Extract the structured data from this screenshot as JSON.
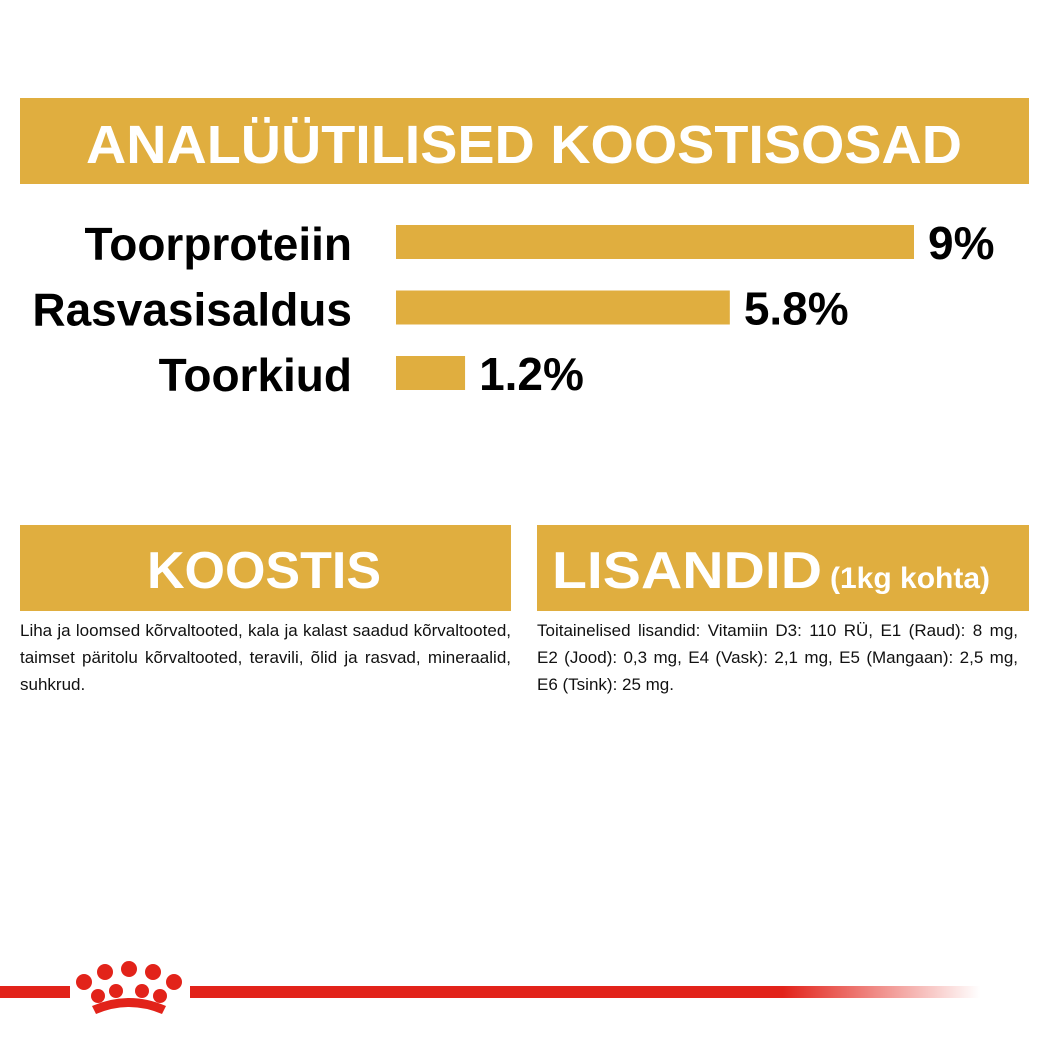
{
  "chart_data": {
    "type": "bar",
    "orientation": "horizontal",
    "title": "ANALÜÜTILISED KOOSTISOSAD",
    "categories": [
      "Toorproteiin",
      "Rasvasisaldus",
      "Toorkiud"
    ],
    "values": [
      9,
      5.8,
      1.2
    ],
    "value_labels": [
      "9%",
      "5.8%",
      "1.2%"
    ],
    "color": "#e0ae3f"
  },
  "composition": {
    "title": "KOOSTIS",
    "text": "Liha ja loomsed kõrvaltooted, kala ja kalast saadud kõrvaltooted, taimset päritolu kõrvaltooted, teravili, õlid ja rasvad, mineraalid, suhkrud."
  },
  "additives": {
    "title": "LISANDID",
    "subtitle": "(1kg kohta)",
    "text": "Toitainelised lisandid: Vitamiin D3: 110 RÜ, E1 (Raud): 8 mg, E2 (Jood): 0,3 mg, E4 (Vask): 2,1 mg, E5 (Mangaan): 2,5 mg, E6 (Tsink): 25 mg."
  }
}
